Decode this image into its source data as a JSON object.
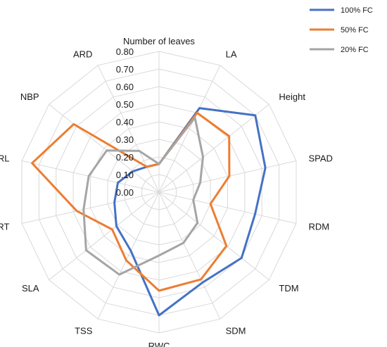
{
  "chart_data": {
    "type": "radar",
    "categories": [
      "Number of leaves",
      "LA",
      "Height",
      "SPAD",
      "RDM",
      "TDM",
      "SDM",
      "RWC",
      "TSS",
      "SLA",
      "NRT",
      "TRL",
      "NBP",
      "ARD"
    ],
    "ticks": [
      "0.00",
      "0.10",
      "0.20",
      "0.30",
      "0.40",
      "0.50",
      "0.60",
      "0.70",
      "0.80"
    ],
    "rlim": [
      0,
      0.8
    ],
    "grid": true,
    "legend_position": "top-right",
    "series": [
      {
        "name": "100% FC",
        "color": "#4472C4",
        "values": [
          0.16,
          0.53,
          0.7,
          0.62,
          0.56,
          0.6,
          0.57,
          0.7,
          0.37,
          0.31,
          0.26,
          0.24,
          0.19,
          0.16
        ]
      },
      {
        "name": "50% FC",
        "color": "#ED7D31",
        "values": [
          0.16,
          0.5,
          0.51,
          0.41,
          0.3,
          0.49,
          0.55,
          0.56,
          0.43,
          0.34,
          0.48,
          0.74,
          0.62,
          0.16
        ]
      },
      {
        "name": "20% FC",
        "color": "#A5A5A5",
        "values": [
          0.16,
          0.47,
          0.32,
          0.24,
          0.2,
          0.28,
          0.32,
          0.36,
          0.52,
          0.53,
          0.44,
          0.41,
          0.38,
          0.26
        ]
      }
    ]
  }
}
